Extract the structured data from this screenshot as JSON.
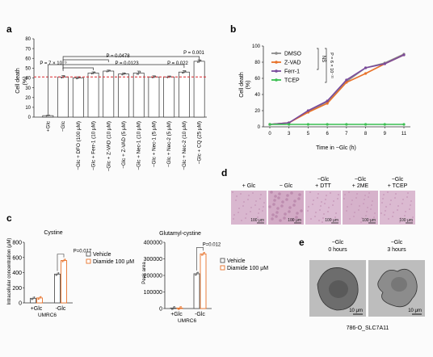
{
  "panels": {
    "a": "a",
    "b": "b",
    "c": "c",
    "d": "d",
    "e": "e"
  },
  "chart_data": [
    {
      "id": "a",
      "type": "bar",
      "ylabel": "Cell death",
      "ylabel_unit": "(%)",
      "ylim": [
        0,
        80
      ],
      "yticks": [
        "0",
        "10",
        "20",
        "30",
        "40",
        "50",
        "60",
        "70",
        "80"
      ],
      "categories": [
        "+Glc",
        "−Glc",
        "−Glc + DFO (100 μM)",
        "−Glc + Ferr-1 (10 μM)",
        "−Glc + Z-VAD (10 μM)",
        "−Glc + Z-VAD (5 μM)",
        "−Glc + Nec-1 (10 μM)",
        "−Glc + Nec-1 (5 μM)",
        "−Glc + Nec-2 (5 μM)",
        "−Glc + Nec-2 (10 μM)",
        "−Glc + CQ (25 μM)"
      ],
      "values": [
        1.5,
        41,
        40,
        45,
        47,
        44,
        45,
        41,
        41,
        46,
        57
      ],
      "errors": [
        0.5,
        1.5,
        1.2,
        1.2,
        1.0,
        1.2,
        2.0,
        1.2,
        1.0,
        1.5,
        1.5
      ],
      "reference_line": 41,
      "annotations": {
        "p1": "P = 7 × 10⁻⁹",
        "p2": "P = 0.0478",
        "p3": "P = 0.0123",
        "p4": "P = 0.022",
        "p5": "P = 0.001"
      }
    },
    {
      "id": "b",
      "type": "line",
      "xlabel": "Time in −Glc (h)",
      "ylabel": "Cell death",
      "ylabel_unit": "(%)",
      "ylim": [
        0,
        100
      ],
      "yticks": [
        "0",
        "20",
        "40",
        "60",
        "80",
        "100"
      ],
      "x": [
        0,
        3,
        5,
        6,
        7,
        8,
        9,
        11
      ],
      "xticks": [
        "0",
        "3",
        "5",
        "6",
        "7",
        "8",
        "9",
        "11"
      ],
      "series": [
        {
          "name": "DMSO",
          "color": "#8c8c8c",
          "values": [
            3,
            5,
            19,
            31,
            56,
            73,
            79,
            90
          ]
        },
        {
          "name": "Z-VAD",
          "color": "#e8722a",
          "values": [
            3,
            5,
            18,
            29,
            55,
            66,
            78,
            89
          ]
        },
        {
          "name": "Ferr-1",
          "color": "#7a4a9c",
          "values": [
            3,
            5,
            20,
            32,
            58,
            73,
            78,
            89
          ]
        },
        {
          "name": "TCEP",
          "color": "#3bbf52",
          "values": [
            3,
            3,
            3,
            3,
            3,
            3,
            3,
            3
          ]
        }
      ],
      "annotations": {
        "ns": "NS",
        "p": "P = 6 × 10⁻¹¹"
      }
    },
    {
      "id": "c1",
      "type": "bar",
      "title": "Cystine",
      "ylabel": "Intracellular concentration (μM)",
      "ylim": [
        0,
        800
      ],
      "yticks": [
        "0",
        "200",
        "400",
        "600",
        "800"
      ],
      "categories": [
        "+Glc",
        "-Glc"
      ],
      "series": [
        {
          "name": "Vehicle",
          "color": "#555555",
          "values": [
            60,
            380
          ]
        },
        {
          "name": "Diamide 100 μM",
          "color": "#e8722a",
          "values": [
            65,
            560
          ]
        }
      ],
      "xsub": "UMRC6",
      "annotations": {
        "p": "P=0.017"
      }
    },
    {
      "id": "c2",
      "type": "bar",
      "title": "Glutamyl-cystine",
      "ylabel": "Peak area",
      "ylim": [
        0,
        400000
      ],
      "yticks": [
        "0",
        "100000",
        "200000",
        "300000",
        "400000"
      ],
      "categories": [
        "+Glc",
        "-Glc"
      ],
      "series": [
        {
          "name": "Vehicle",
          "color": "#555555",
          "values": [
            3000,
            210000
          ]
        },
        {
          "name": "Diamide 100 μM",
          "color": "#e8722a",
          "values": [
            3000,
            330000
          ]
        }
      ],
      "xsub": "UMRC6",
      "annotations": {
        "p": "P=0.012"
      }
    }
  ],
  "panel_d": {
    "labels": [
      "+ Glc",
      "− Glc",
      "−Glc\n+ DTT",
      "−Glc\n+ 2ME",
      "−Glc\n+ TCEP"
    ],
    "scale": "100 μm"
  },
  "panel_e": {
    "labels": [
      "−Glc\n0 hours",
      "−Glc\n3 hours"
    ],
    "scale": "10 μm",
    "caption": "786-O_SLC7A11"
  }
}
